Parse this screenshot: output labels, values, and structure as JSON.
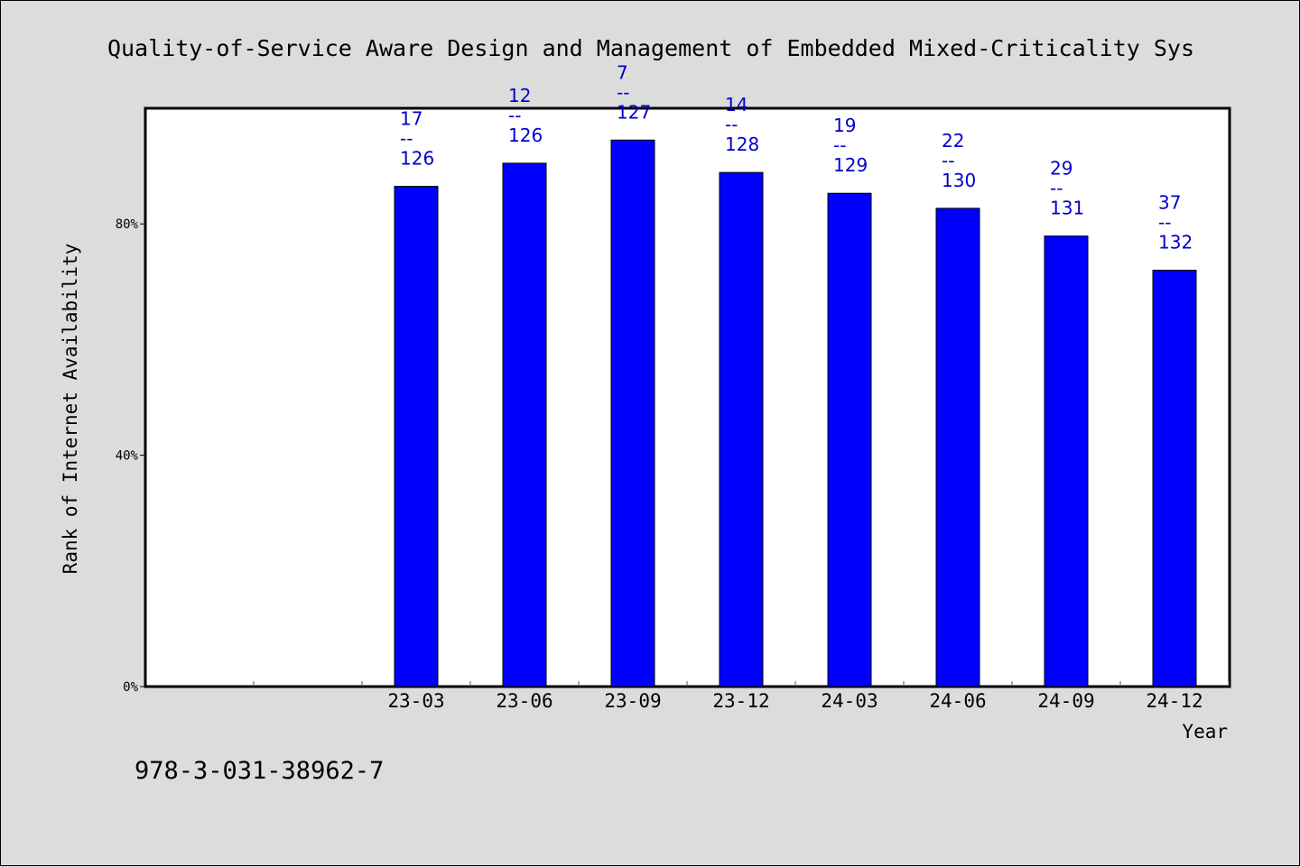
{
  "chart_data": {
    "type": "bar",
    "title": "Quality-of-Service Aware Design and Management of Embedded Mixed-Criticality Sys",
    "xlabel": "Year",
    "ylabel": "Rank of Internet Availability",
    "categories": [
      "23-03",
      "23-06",
      "23-09",
      "23-12",
      "24-03",
      "24-06",
      "24-09",
      "24-12"
    ],
    "values": [
      86.5,
      90.5,
      94.5,
      88.9,
      85.3,
      82.7,
      77.9,
      72.0
    ],
    "labels_top": [
      "17",
      "12",
      "7",
      "14",
      "19",
      "22",
      "29",
      "37"
    ],
    "labels_sep": "--",
    "labels_bottom": [
      "126",
      "126",
      "127",
      "128",
      "129",
      "130",
      "131",
      "132"
    ],
    "yticks": [
      0,
      40,
      80
    ],
    "ytick_labels": [
      "0%",
      "40%",
      "80%"
    ],
    "ylim": [
      0,
      100
    ],
    "grid": false,
    "bar_color": "#0000ff",
    "label_color": "#0000cc",
    "plot_background": "#ffffff",
    "page_background": "#dcdcdc"
  },
  "footer": {
    "isbn": "978-3-031-38962-7"
  }
}
